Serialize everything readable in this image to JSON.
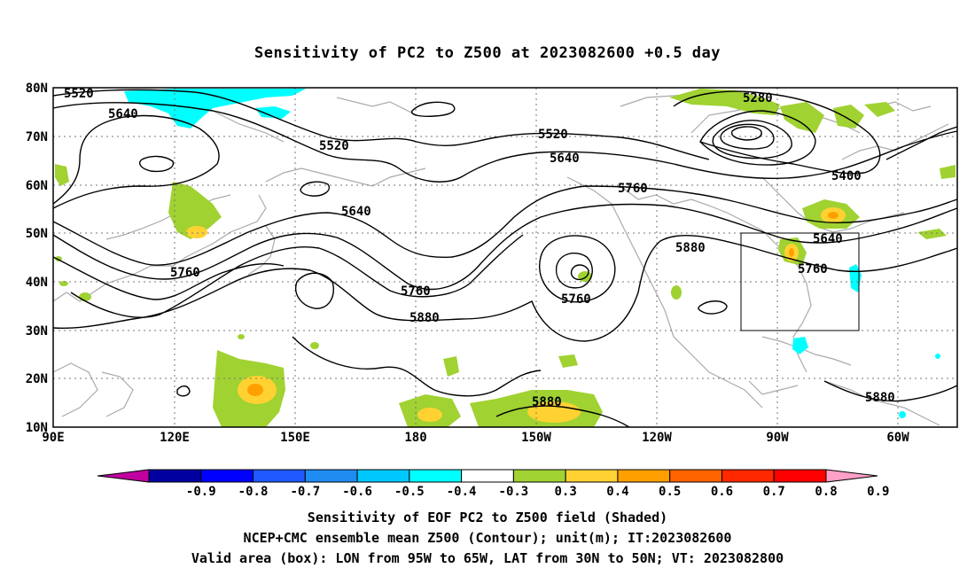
{
  "title": "Sensitivity of PC2 to Z500 at 2023082600 +0.5 day",
  "lat_labels": [
    "80N",
    "70N",
    "60N",
    "50N",
    "40N",
    "30N",
    "20N",
    "10N"
  ],
  "lon_labels": [
    "90E",
    "120E",
    "150E",
    "180",
    "150W",
    "120W",
    "90W",
    "60W"
  ],
  "colorbar": {
    "labels": [
      "-0.9",
      "-0.8",
      "-0.7",
      "-0.6",
      "-0.5",
      "-0.4",
      "-0.3",
      "0.3",
      "0.4",
      "0.5",
      "0.6",
      "0.7",
      "0.8",
      "0.9"
    ],
    "colors": [
      "#c000a0",
      "#0000a0",
      "#0000ff",
      "#1e5aff",
      "#1e8cf0",
      "#00c8ff",
      "#00ffff",
      "#ffffff",
      "#a0d232",
      "#ffd232",
      "#ffa000",
      "#ff6400",
      "#ff2800",
      "#ff0000",
      "#ffa0c8"
    ]
  },
  "contour_labels": [
    "5520",
    "5640",
    "5520",
    "5640",
    "5760",
    "5760",
    "5880",
    "5520",
    "5640",
    "5760",
    "5760",
    "5880",
    "5880",
    "5280",
    "5400",
    "5640",
    "5760",
    "5880"
  ],
  "box": {
    "lon_west": "95W",
    "lon_east": "65W",
    "lat_south": "30N",
    "lat_north": "50N"
  },
  "caption": [
    "Sensitivity of EOF PC2 to Z500 field (Shaded)",
    "NCEP+CMC ensemble mean Z500 (Contour); unit(m); IT:2023082600",
    "Valid area (box): LON from 95W to 65W, LAT from 30N to 50N; VT: 2023082800"
  ]
}
